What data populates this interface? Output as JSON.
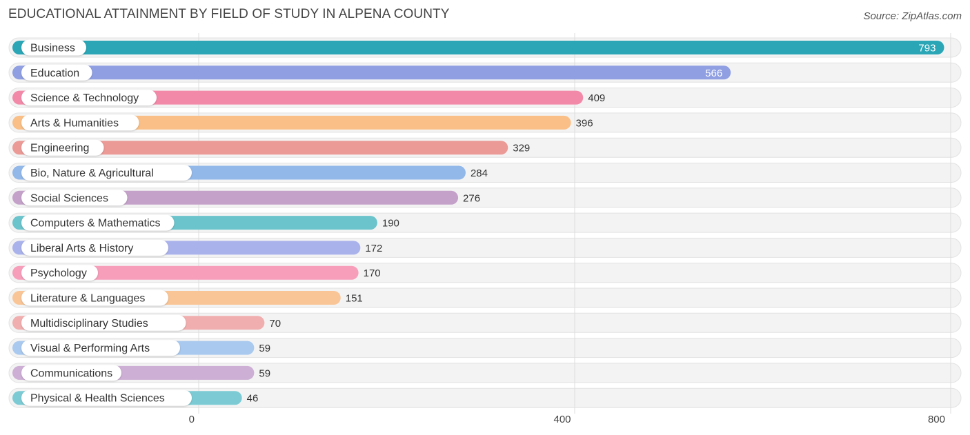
{
  "header": {
    "title": "EDUCATIONAL ATTAINMENT BY FIELD OF STUDY IN ALPENA COUNTY",
    "source": "Source: ZipAtlas.com"
  },
  "chart_data": {
    "type": "bar",
    "orientation": "horizontal",
    "title": "EDUCATIONAL ATTAINMENT BY FIELD OF STUDY IN ALPENA COUNTY",
    "xlabel": "",
    "ylabel": "",
    "xlim": [
      0,
      800
    ],
    "ticks": [
      0,
      400,
      800
    ],
    "grid": true,
    "categories": [
      "Business",
      "Education",
      "Science & Technology",
      "Arts & Humanities",
      "Engineering",
      "Bio, Nature & Agricultural",
      "Social Sciences",
      "Computers & Mathematics",
      "Liberal Arts & History",
      "Psychology",
      "Literature & Languages",
      "Multidisciplinary Studies",
      "Visual & Performing Arts",
      "Communications",
      "Physical & Health Sciences"
    ],
    "values": [
      793,
      566,
      409,
      396,
      329,
      284,
      276,
      190,
      172,
      170,
      151,
      70,
      59,
      59,
      46
    ],
    "colors": [
      "#2aa6b6",
      "#8f9fe2",
      "#f389a9",
      "#f9bf86",
      "#eb9a96",
      "#92b8ea",
      "#c4a1c9",
      "#6bc3cb",
      "#aab2ec",
      "#f79ebb",
      "#f9c596",
      "#f1aeae",
      "#a9c9ef",
      "#cdaed5",
      "#7ccbd4"
    ]
  }
}
